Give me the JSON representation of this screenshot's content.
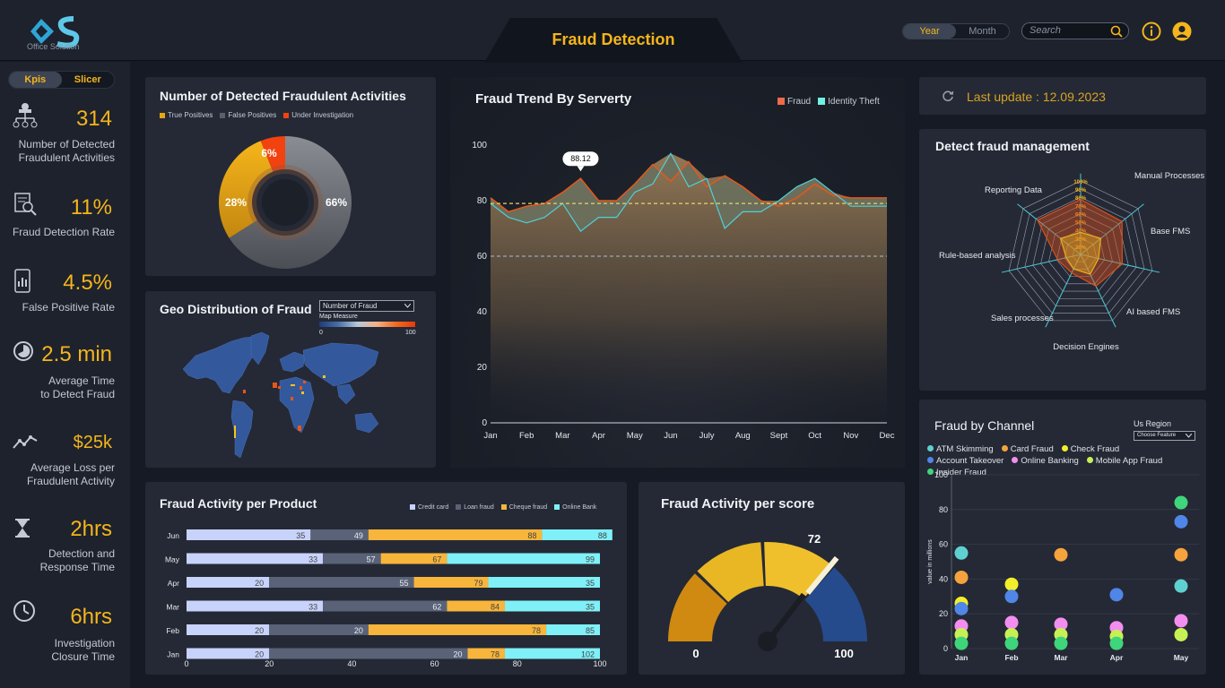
{
  "header": {
    "logo_text": "Office Solution",
    "title": "Fraud Detection",
    "period_on": "Year",
    "period_off": "Month",
    "search_placeholder": "Search"
  },
  "sidebar": {
    "tab_on": "Kpis",
    "tab_off": "Slicer",
    "kpis": [
      {
        "value": "314",
        "label": "Number of Detected\nFraudulent Activities",
        "icon": "hierarchy-icon"
      },
      {
        "value": "11%",
        "label": "Fraud Detection Rate",
        "icon": "document-search-icon"
      },
      {
        "value": "4.5%",
        "label": "False Positive Rate",
        "icon": "tablet-chart-icon"
      },
      {
        "value": "2.5 min",
        "label": "Average Time\nto Detect Fraud",
        "icon": "pie-clock-icon"
      },
      {
        "value": "$25k",
        "label": "Average Loss per\nFraudulent Activity",
        "icon": "trend-line-icon"
      },
      {
        "value": "2hrs",
        "label": "Detection and\nResponse Time",
        "icon": "hourglass-icon"
      },
      {
        "value": "6hrs",
        "label": "Investigation\nClosure Time",
        "icon": "clock-icon"
      }
    ]
  },
  "donut": {
    "title": "Number of Detected Fraudulent Activities",
    "legend": [
      {
        "label": "True Positives",
        "color": "#e8a613"
      },
      {
        "label": "False Positives",
        "color": "#5b5f68"
      },
      {
        "label": "Under Investigation",
        "color": "#f2420f"
      }
    ],
    "slices": [
      {
        "label": "66%",
        "value": 66,
        "color": "#6a6e76"
      },
      {
        "label": "28%",
        "value": 28,
        "color": "#e8a613"
      },
      {
        "label": "6%",
        "value": 6,
        "color": "#f2420f"
      }
    ]
  },
  "geo": {
    "title": "Geo Distribution of Fraud",
    "select_value": "Number of Fraud",
    "measure_label": "Map Measure",
    "scale_min": "0",
    "scale_max": "100"
  },
  "trend": {
    "title": "Fraud Trend By Serverty",
    "legend_fraud": "Fraud",
    "legend_identity": "Identity Theft",
    "tooltip": "88.12",
    "chart_data": {
      "type": "area",
      "title": "Fraud Trend By Serverty",
      "ylim": [
        0,
        100
      ],
      "yticks": [
        "0",
        "20",
        "40",
        "60",
        "80",
        "100"
      ],
      "months": [
        "Jan",
        "Feb",
        "Mar",
        "Apr",
        "May",
        "Jun",
        "July",
        "Aug",
        "Sept",
        "Oct",
        "Nov",
        "Dec"
      ],
      "x": [
        0,
        0.5,
        1,
        1.5,
        2,
        2.5,
        3,
        3.5,
        4,
        4.5,
        5,
        5.5,
        6,
        6.5,
        7,
        7.5,
        8,
        8.5,
        9,
        9.5,
        10,
        10.5,
        11
      ],
      "series": [
        {
          "name": "Fraud",
          "color": "#e8561a",
          "values": [
            81,
            76,
            78,
            79,
            83,
            88,
            80,
            80,
            86,
            93,
            87,
            94,
            85,
            89,
            85,
            80,
            78,
            81,
            86,
            82,
            81,
            81,
            81
          ]
        },
        {
          "name": "Identity Theft",
          "color": "#4fd1d9",
          "values": [
            79,
            74,
            72,
            74,
            79,
            69,
            74,
            74,
            83,
            86,
            97,
            85,
            88,
            70,
            76,
            76,
            80,
            85,
            88,
            83,
            78,
            78,
            78
          ]
        }
      ],
      "reference_lines": [
        79,
        60
      ]
    }
  },
  "radar": {
    "title": "Detect fraud management",
    "axes": [
      "Manual Processes",
      "Base FMS",
      "AI based FMS",
      "Decision Engines",
      "Sales processes",
      "Rule-based analysis",
      "Reporting Data"
    ],
    "rings": [
      "100%",
      "90%",
      "80%",
      "70%",
      "60%",
      "50%",
      "40%",
      "30%",
      "20%"
    ],
    "chart_data": {
      "type": "radar",
      "series": [
        {
          "name": "Orange",
          "color": "#d9501c",
          "values": [
            0.75,
            0.72,
            0.58,
            0.48,
            0.28,
            0.32,
            0.75
          ]
        },
        {
          "name": "Yellow",
          "color": "#e8b020",
          "values": [
            0.3,
            0.35,
            0.25,
            0.3,
            0.22,
            0.2,
            0.35
          ]
        }
      ]
    }
  },
  "update": {
    "label": "Last update : 12.09.2023"
  },
  "product": {
    "title": "Fraud Activity per Product",
    "legend": [
      {
        "label": "Credit card",
        "color": "#c8d3fb"
      },
      {
        "label": "Loan fraud",
        "color": "#5a6278"
      },
      {
        "label": "Cheque fraud",
        "color": "#f7b53b"
      },
      {
        "label": "Online Bank",
        "color": "#7ff0f7"
      }
    ],
    "xticks": [
      "0",
      "20",
      "40",
      "60",
      "80",
      "100"
    ],
    "chart_data": {
      "type": "bar",
      "categories": [
        "Jun",
        "May",
        "Apr",
        "Mar",
        "Feb",
        "Jan"
      ],
      "series": [
        {
          "name": "Credit card",
          "values": [
            35,
            33,
            20,
            33,
            20,
            20
          ]
        },
        {
          "name": "Loan fraud",
          "values": [
            49,
            57,
            55,
            62,
            20,
            20
          ]
        },
        {
          "name": "Cheque fraud",
          "values": [
            88,
            67,
            79,
            84,
            78,
            78
          ]
        },
        {
          "name": "Online Bank",
          "values": [
            88,
            99,
            35,
            35,
            85,
            102
          ]
        }
      ],
      "segment_widths": [
        [
          30,
          14,
          42,
          17
        ],
        [
          33,
          14,
          16,
          37
        ],
        [
          20,
          35,
          18,
          27
        ],
        [
          33,
          30,
          14,
          23
        ],
        [
          20,
          24,
          43,
          13
        ],
        [
          20,
          48,
          9,
          23
        ]
      ]
    }
  },
  "gauge": {
    "title": "Fraud Activity per score",
    "value": "72",
    "min": "0",
    "max": "100",
    "chart_data": {
      "type": "gauge",
      "value": 72,
      "min": 0,
      "max": 100
    }
  },
  "channel": {
    "title": "Fraud by Channel",
    "region_label": "Us Region",
    "region_select": "Choose Feature",
    "ylabel": "value in millions",
    "legend": [
      {
        "label": "ATM Skimming",
        "color": "#5fd0d0"
      },
      {
        "label": "Card Fraud",
        "color": "#f5a33d"
      },
      {
        "label": "Check Fraud",
        "color": "#f2ef2a"
      },
      {
        "label": "Account Takeover",
        "color": "#4f86e8"
      },
      {
        "label": "Online Banking",
        "color": "#f38ef0"
      },
      {
        "label": "Mobile App Fraud",
        "color": "#c7f055"
      },
      {
        "label": "Insider Fraud",
        "color": "#3fd57a"
      }
    ],
    "yticks": [
      "0",
      "20",
      "40",
      "60",
      "80",
      "100"
    ],
    "chart_data": {
      "type": "scatter",
      "categories": [
        "Jan",
        "Feb",
        "Mar",
        "Apr",
        "May"
      ],
      "series": [
        {
          "name": "ATM Skimming",
          "values": [
            55,
            null,
            null,
            null,
            36
          ]
        },
        {
          "name": "Card Fraud",
          "values": [
            41,
            null,
            54,
            null,
            54
          ]
        },
        {
          "name": "Check Fraud",
          "values": [
            26,
            37,
            null,
            null,
            null
          ]
        },
        {
          "name": "Account Takeover",
          "values": [
            23,
            30,
            null,
            31,
            73
          ]
        },
        {
          "name": "Online Banking",
          "values": [
            13,
            15,
            14,
            12,
            16
          ]
        },
        {
          "name": "Mobile App Fraud",
          "values": [
            8,
            8,
            8,
            7,
            8
          ]
        },
        {
          "name": "Insider Fraud",
          "values": [
            3,
            3,
            3,
            3,
            84
          ]
        }
      ]
    }
  }
}
